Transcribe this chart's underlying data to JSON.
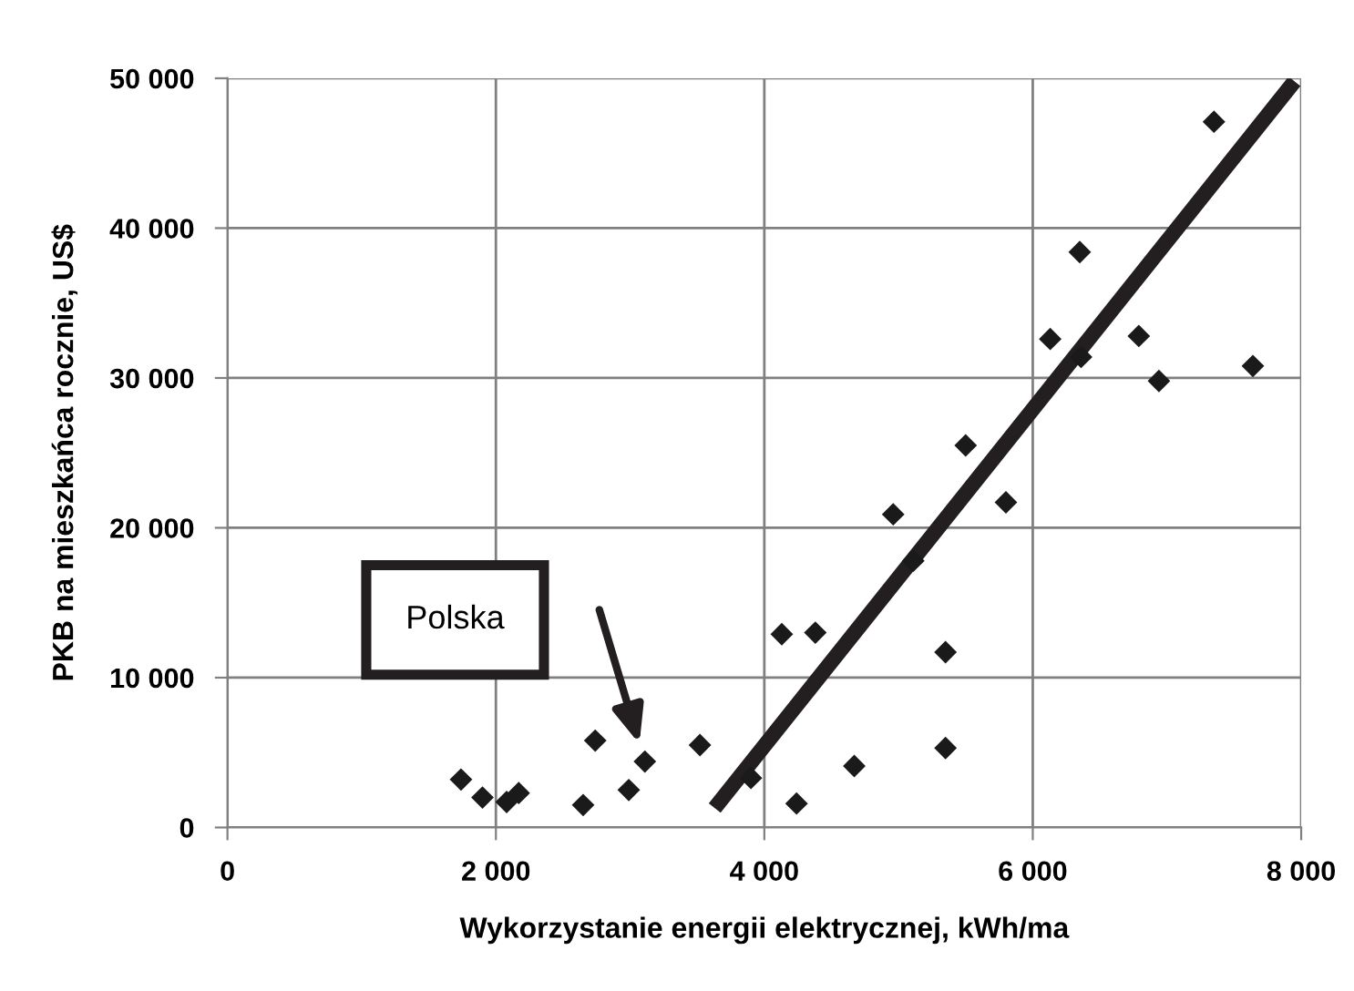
{
  "chart_data": {
    "type": "scatter",
    "xlabel": "Wykorzystanie energii elektrycznej, kWh/ma",
    "ylabel": "PKB na mieszkańca rocznie, US$",
    "series": [
      {
        "color": "#1a1a1a",
        "marker": "diamond",
        "x": [
          1740,
          1900,
          2080,
          2170,
          2650,
          2740,
          2990,
          3110,
          3520,
          3900,
          4240,
          4130,
          4380,
          4670,
          4960,
          5110,
          5350,
          5350,
          5500,
          5800,
          6130,
          6350,
          6360,
          6790,
          6940,
          7350,
          7640
        ],
        "values": [
          3200,
          2000,
          1700,
          2300,
          1500,
          5800,
          2500,
          4400,
          5500,
          3300,
          1600,
          12900,
          13000,
          4100,
          20900,
          17800,
          11700,
          5300,
          25500,
          21700,
          32600,
          38400,
          31400,
          32800,
          29800,
          47100,
          30800
        ]
      },
      {
        "type": "line",
        "color": "#231f20",
        "marker": "none",
        "line_style": "solid",
        "x": [
          3630,
          7950
        ],
        "values": [
          1300,
          49800
        ]
      }
    ],
    "annotations": [
      "Polska"
    ],
    "xlim": [
      0,
      8000
    ],
    "xticks": [
      {
        "value": 0,
        "label": "0"
      },
      {
        "value": 2000,
        "label": "2 000"
      },
      {
        "value": 4000,
        "label": "4 000"
      },
      {
        "value": 6000,
        "label": "6 000"
      },
      {
        "value": 8000,
        "label": "8 000"
      }
    ],
    "ylim": [
      0,
      50000
    ],
    "yticks": [
      {
        "value": 0,
        "label": "0"
      },
      {
        "value": 10000,
        "label": "10 000"
      },
      {
        "value": 20000,
        "label": "20 000"
      },
      {
        "value": 30000,
        "label": "30 000"
      },
      {
        "value": 40000,
        "label": "40 000"
      },
      {
        "value": 50000,
        "label": "50 000"
      }
    ],
    "grid": true
  }
}
